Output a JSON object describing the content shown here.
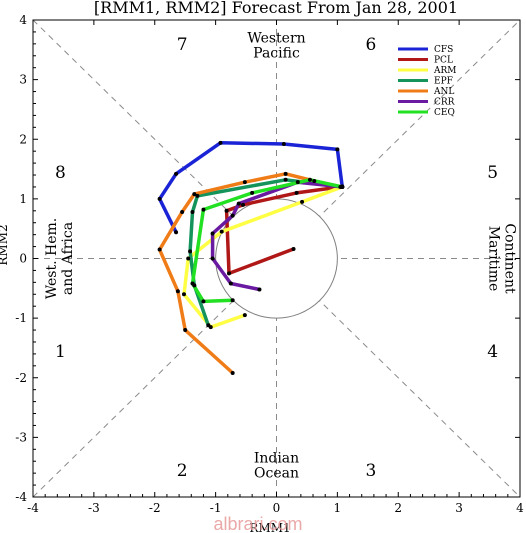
{
  "chart_data": {
    "type": "line",
    "title": "[RMM1, RMM2] Forecast From Jan 28, 2001",
    "xlabel": "RMM1",
    "ylabel": "RMM2",
    "xlim": [
      -4,
      4
    ],
    "ylim": [
      -4,
      4
    ],
    "xticks": [
      "-4",
      "-3",
      "-2",
      "-1",
      "0",
      "1",
      "2",
      "3",
      "4"
    ],
    "yticks": [
      "-4",
      "-3",
      "-2",
      "-1",
      "0",
      "1",
      "2",
      "3",
      "4"
    ],
    "phases": [
      {
        "label": "1",
        "x": -3.55,
        "y": -1.55
      },
      {
        "label": "2",
        "x": -1.55,
        "y": -3.55
      },
      {
        "label": "3",
        "x": 1.55,
        "y": -3.55
      },
      {
        "label": "4",
        "x": 3.55,
        "y": -1.55
      },
      {
        "label": "5",
        "x": 3.55,
        "y": 1.45
      },
      {
        "label": "6",
        "x": 1.55,
        "y": 3.6
      },
      {
        "label": "7",
        "x": -1.55,
        "y": 3.6
      },
      {
        "label": "8",
        "x": -3.55,
        "y": 1.45
      }
    ],
    "regions": {
      "top": [
        "Western",
        "Pacific"
      ],
      "bottom": [
        "Indian",
        "Ocean"
      ],
      "left": [
        "West. Hem.",
        "and Africa"
      ],
      "right": [
        "Maritime",
        "Continent"
      ]
    },
    "legend_position": "top-right",
    "series": [
      {
        "name": "CFS",
        "color": "#1a24d6",
        "points": [
          [
            1.08,
            1.21
          ],
          [
            1.0,
            1.83
          ],
          [
            0.12,
            1.92
          ],
          [
            -0.92,
            1.94
          ],
          [
            -1.65,
            1.42
          ],
          [
            -1.92,
            1.0
          ],
          [
            -1.65,
            0.44
          ]
        ]
      },
      {
        "name": "PCL",
        "color": "#b01818",
        "points": [
          [
            0.28,
            0.16
          ],
          [
            -0.78,
            -0.25
          ],
          [
            -0.82,
            0.8
          ],
          [
            -0.55,
            0.9
          ],
          [
            0.33,
            1.1
          ],
          [
            1.05,
            1.2
          ]
        ]
      },
      {
        "name": "ARM",
        "color": "#ffff44",
        "points": [
          [
            1.08,
            1.2
          ],
          [
            0.42,
            0.95
          ],
          [
            -0.9,
            0.45
          ],
          [
            -1.45,
            0.0
          ],
          [
            -1.52,
            -0.6
          ],
          [
            -1.08,
            -1.15
          ],
          [
            -0.52,
            -0.95
          ]
        ]
      },
      {
        "name": "EPF",
        "color": "#14935a",
        "points": [
          [
            1.08,
            1.2
          ],
          [
            0.15,
            1.32
          ],
          [
            -1.3,
            1.05
          ],
          [
            -1.38,
            0.78
          ],
          [
            -1.42,
            0.12
          ],
          [
            -1.35,
            -0.45
          ],
          [
            -1.12,
            -1.12
          ]
        ]
      },
      {
        "name": "ANL",
        "color": "#f07c18",
        "points": [
          [
            -0.72,
            -1.92
          ],
          [
            -1.5,
            -1.2
          ],
          [
            -1.62,
            -0.55
          ],
          [
            -1.92,
            0.15
          ],
          [
            -1.55,
            0.78
          ],
          [
            -1.35,
            1.08
          ],
          [
            -0.52,
            1.28
          ],
          [
            0.15,
            1.42
          ],
          [
            0.62,
            1.3
          ],
          [
            1.08,
            1.2
          ]
        ]
      },
      {
        "name": "CRR",
        "color": "#6a1aa0",
        "points": [
          [
            -0.28,
            -0.52
          ],
          [
            -0.75,
            -0.42
          ],
          [
            -1.05,
            0.0
          ],
          [
            -1.05,
            0.42
          ],
          [
            -0.72,
            0.72
          ],
          [
            -0.62,
            0.92
          ],
          [
            0.35,
            1.28
          ],
          [
            1.08,
            1.2
          ]
        ]
      },
      {
        "name": "CEQ",
        "color": "#22e022",
        "points": [
          [
            1.08,
            1.2
          ],
          [
            0.55,
            1.32
          ],
          [
            -0.4,
            1.1
          ],
          [
            -1.2,
            0.82
          ],
          [
            -1.38,
            -0.42
          ],
          [
            -1.2,
            -0.72
          ],
          [
            -0.72,
            -0.7
          ]
        ]
      }
    ]
  }
}
